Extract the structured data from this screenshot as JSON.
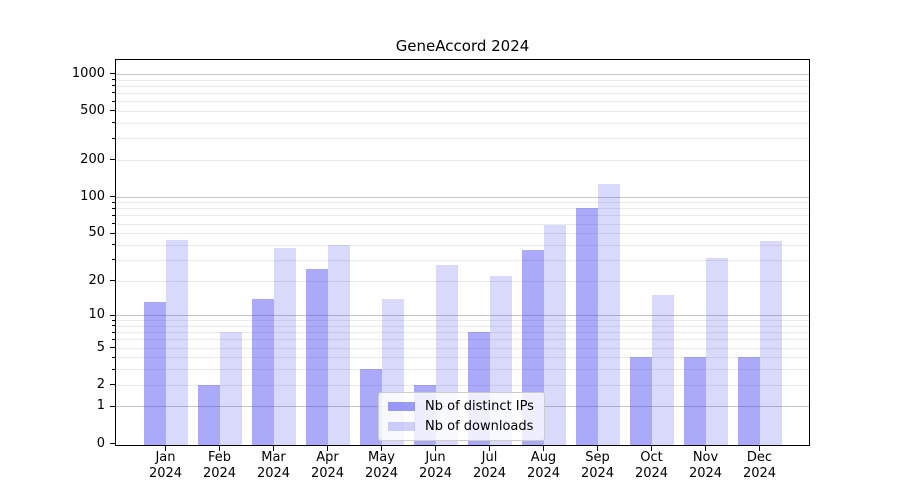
{
  "chart_data": {
    "type": "bar",
    "title": "GeneAccord 2024",
    "categories": [
      "Jan 2024",
      "Feb 2024",
      "Mar 2024",
      "Apr 2024",
      "May 2024",
      "Jun 2024",
      "Jul 2024",
      "Aug 2024",
      "Sep 2024",
      "Oct 2024",
      "Nov 2024",
      "Dec 2024"
    ],
    "series": [
      {
        "name": "Nb of distinct IPs",
        "color": "#4343f0",
        "alpha": 0.45,
        "values": [
          13,
          2,
          14,
          25,
          3,
          2,
          7,
          36,
          80,
          4,
          4,
          4
        ]
      },
      {
        "name": "Nb of downloads",
        "color": "#4343f0",
        "alpha": 0.2,
        "values": [
          44,
          7,
          38,
          40,
          14,
          27,
          22,
          58,
          128,
          15,
          31,
          43
        ]
      }
    ],
    "xlabel": "",
    "ylabel": "",
    "yscale": "log1p",
    "yticks": [
      0,
      1,
      2,
      5,
      10,
      20,
      50,
      100,
      200,
      500,
      1000
    ],
    "ylim": [
      0,
      1300
    ],
    "grid": "horizontal",
    "legend_position": "lower-center",
    "colors": {
      "major_grid": "#c5c5c5",
      "minor_grid": "#eaeaea",
      "axis": "#000000",
      "background": "#ffffff",
      "text": "#000000"
    }
  }
}
